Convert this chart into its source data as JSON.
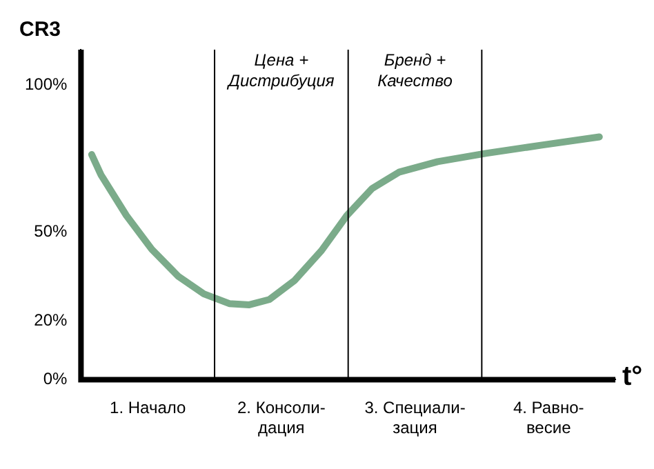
{
  "chart_data": {
    "type": "line",
    "ylabel": "CR3",
    "xlabel": "t°",
    "x": [
      0.08,
      0.15,
      0.34,
      0.53,
      0.73,
      0.92,
      1.11,
      1.26,
      1.41,
      1.6,
      1.8,
      1.99,
      2.18,
      2.38,
      2.67,
      3.03,
      3.45,
      3.88
    ],
    "series": [
      {
        "color": "#7bab8a",
        "values": [
          76.4,
          69.5,
          55.7,
          44.2,
          35,
          29.1,
          25.8,
          25.4,
          27.2,
          33.7,
          43.8,
          55.7,
          64.9,
          70.4,
          74,
          76.8,
          79.6,
          82.4
        ]
      }
    ],
    "xlim": [
      0,
      4
    ],
    "xticks": [
      {
        "value": 0.5,
        "label": "1. Начало"
      },
      {
        "value": 1.5,
        "label": "2. Консоли-\nдация"
      },
      {
        "value": 2.5,
        "label": "3. Специали-\nзация"
      },
      {
        "value": 3.5,
        "label": "4. Равно-\nвесие"
      }
    ],
    "ylim": [
      0,
      112
    ],
    "yticks": [
      {
        "value": 0,
        "label": "0%"
      },
      {
        "value": 20,
        "label": "20%"
      },
      {
        "value": 50,
        "label": "50%"
      },
      {
        "value": 100,
        "label": "100%"
      }
    ],
    "ref_lines": [
      {
        "axis": "x",
        "value": 1,
        "color": "#000000"
      },
      {
        "axis": "x",
        "value": 2,
        "color": "#000000"
      },
      {
        "axis": "x",
        "value": 3,
        "color": "#000000"
      }
    ],
    "annotations": [
      "Цена +\nДистрибуция",
      "Бренд +\nКачество"
    ],
    "grid": false,
    "legend": false,
    "marker": "none",
    "line_style": "solid"
  }
}
